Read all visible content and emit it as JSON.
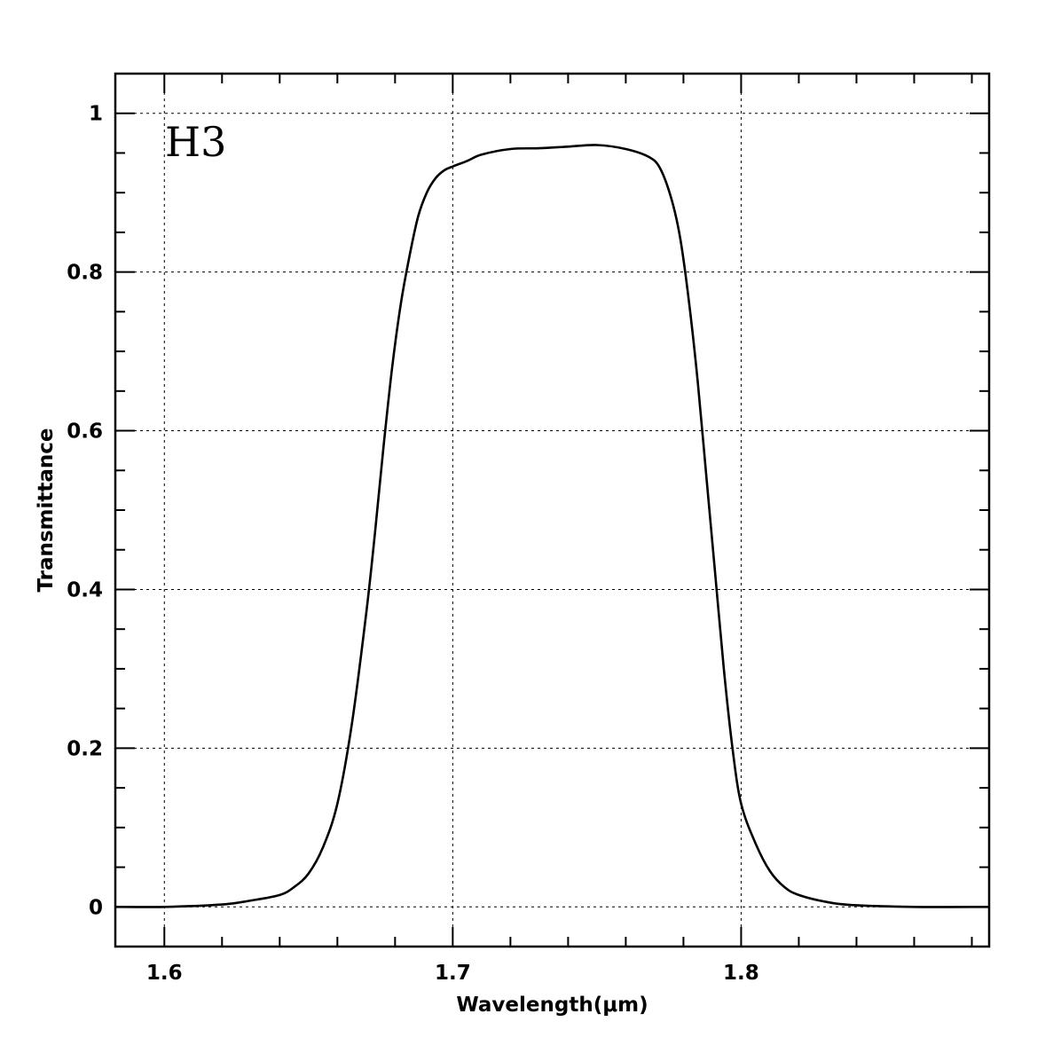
{
  "chart_data": {
    "type": "line",
    "title": "",
    "annotation": "H3",
    "xlabel": "Wavelength(μm)",
    "ylabel": "Transmittance",
    "xlim": [
      1.583,
      1.886
    ],
    "ylim": [
      -0.05,
      1.05
    ],
    "x_ticks": [
      1.6,
      1.7,
      1.8
    ],
    "x_tick_labels": [
      "1.6",
      "1.7",
      "1.8"
    ],
    "x_minor_step": 0.02,
    "y_ticks": [
      0,
      0.2,
      0.4,
      0.6,
      0.8,
      1
    ],
    "y_tick_labels": [
      "0",
      "0.2",
      "0.4",
      "0.6",
      "0.8",
      "1"
    ],
    "y_minor_step": 0.05,
    "grid": true,
    "series": [
      {
        "color": "#000000",
        "x": [
          1.583,
          1.6,
          1.62,
          1.63,
          1.64,
          1.645,
          1.65,
          1.655,
          1.66,
          1.665,
          1.67,
          1.673,
          1.676,
          1.679,
          1.682,
          1.685,
          1.688,
          1.691,
          1.694,
          1.697,
          1.7,
          1.705,
          1.71,
          1.72,
          1.73,
          1.74,
          1.75,
          1.76,
          1.768,
          1.772,
          1.776,
          1.779,
          1.782,
          1.785,
          1.788,
          1.791,
          1.794,
          1.797,
          1.8,
          1.805,
          1.81,
          1.815,
          1.82,
          1.83,
          1.84,
          1.86,
          1.886
        ],
        "y": [
          0.0,
          0.0,
          0.003,
          0.008,
          0.015,
          0.025,
          0.042,
          0.075,
          0.13,
          0.23,
          0.37,
          0.47,
          0.58,
          0.68,
          0.76,
          0.82,
          0.87,
          0.9,
          0.918,
          0.928,
          0.933,
          0.94,
          0.948,
          0.955,
          0.956,
          0.958,
          0.96,
          0.955,
          0.945,
          0.93,
          0.89,
          0.84,
          0.76,
          0.66,
          0.54,
          0.42,
          0.3,
          0.2,
          0.13,
          0.08,
          0.045,
          0.025,
          0.015,
          0.006,
          0.002,
          0.0,
          0.0
        ]
      }
    ]
  }
}
